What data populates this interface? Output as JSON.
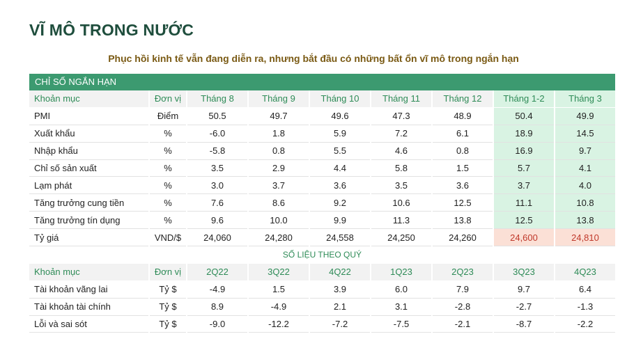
{
  "title": "VĨ MÔ TRONG NƯỚC",
  "subtitle": "Phục hồi kinh tế vẫn đang diễn ra, nhưng bắt đầu có những bất ổn vĩ mô trong ngắn hạn",
  "short_term": {
    "section_label": "CHỈ SỐ NGẮN HẠN",
    "header": [
      "Khoản mục",
      "Đơn vị",
      "Tháng 8",
      "Tháng 9",
      "Tháng 10",
      "Tháng 11",
      "Tháng 12",
      "Tháng 1-2",
      "Tháng 3"
    ],
    "rows": [
      [
        "PMI",
        "Điểm",
        "50.5",
        "49.7",
        "49.6",
        "47.3",
        "48.9",
        "50.4",
        "49.9"
      ],
      [
        "Xuất khẩu",
        "%",
        "-6.0",
        "1.8",
        "5.9",
        "7.2",
        "6.1",
        "18.9",
        "14.5"
      ],
      [
        "Nhập khẩu",
        "%",
        "-5.8",
        "0.8",
        "5.5",
        "4.6",
        "0.8",
        "16.9",
        "9.7"
      ],
      [
        "Chỉ số sản xuất",
        "%",
        "3.5",
        "2.9",
        "4.4",
        "5.8",
        "1.5",
        "5.7",
        "4.1"
      ],
      [
        "Lạm phát",
        "%",
        "3.0",
        "3.7",
        "3.6",
        "3.5",
        "3.6",
        "3.7",
        "4.0"
      ],
      [
        "Tăng trưởng cung tiền",
        "%",
        "7.6",
        "8.6",
        "9.2",
        "10.6",
        "12.5",
        "11.1",
        "10.8"
      ],
      [
        "Tăng trưởng tín dụng",
        "%",
        "9.6",
        "10.0",
        "9.9",
        "11.3",
        "13.8",
        "12.5",
        "13.8"
      ],
      [
        "Tỷ giá",
        "VND/$",
        "24,060",
        "24,280",
        "24,558",
        "24,250",
        "24,260",
        "24,600",
        "24,810"
      ]
    ]
  },
  "quarterly": {
    "section_label": "SỐ LIỆU THEO QUÝ",
    "header": [
      "Khoản mục",
      "Đơn vị",
      "2Q22",
      "3Q22",
      "4Q22",
      "1Q23",
      "2Q23",
      "3Q23",
      "4Q23"
    ],
    "rows": [
      [
        "Tài khoản vãng lai",
        "Tỷ $",
        "-4.9",
        "1.5",
        "3.9",
        "6.0",
        "7.9",
        "9.7",
        "6.4"
      ],
      [
        "Tài khoản tài chính",
        "Tỷ $",
        "8.9",
        "-4.9",
        "2.1",
        "3.1",
        "-2.8",
        "-2.7",
        "-1.3"
      ],
      [
        "Lỗi và sai sót",
        "Tỷ $",
        "-9.0",
        "-12.2",
        "-7.2",
        "-7.5",
        "-2.1",
        "-8.7",
        "-2.2"
      ]
    ]
  },
  "colors": {
    "title": "#1f4e3d",
    "subtitle": "#7a5a14",
    "section_bar": "#3c9a70",
    "header_text": "#2e8b57",
    "highlight_green": "#d9f3e3",
    "highlight_red": "#fbe0d6",
    "negative_exchange_text": "#c0392b"
  }
}
